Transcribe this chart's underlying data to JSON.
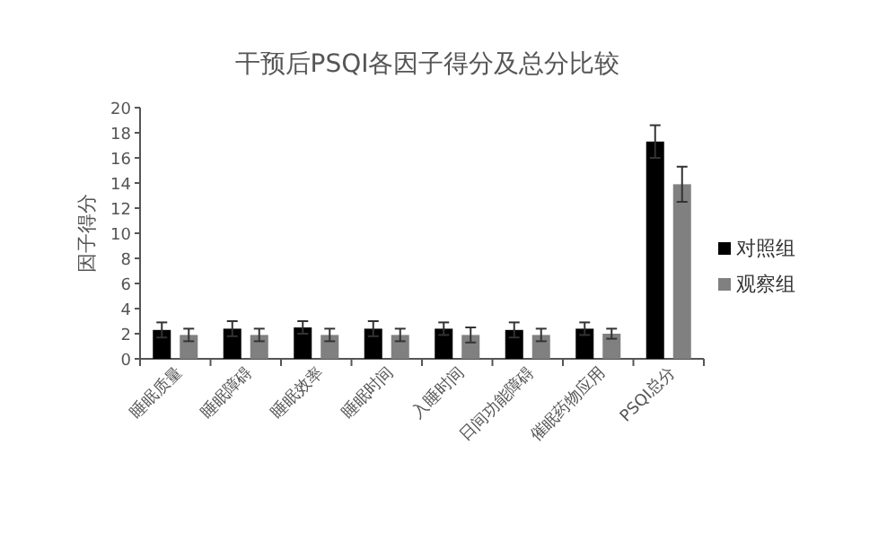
{
  "chart_data": {
    "type": "bar",
    "title": "干预后PSQI各因子得分及总分比较",
    "ylabel": "因子得分",
    "categories": [
      "睡眠质量",
      "睡眠障碍",
      "睡眠效率",
      "睡眠时间",
      "入睡时间",
      "日间功能障碍",
      "催眠药物应用",
      "PSQI总分"
    ],
    "series": [
      {
        "name": "对照组",
        "color": "#000000",
        "values": [
          2.3,
          2.4,
          2.5,
          2.4,
          2.4,
          2.3,
          2.4,
          17.3
        ],
        "errors": [
          0.6,
          0.6,
          0.5,
          0.6,
          0.5,
          0.6,
          0.5,
          1.3
        ]
      },
      {
        "name": "观察组",
        "color": "#808080",
        "values": [
          1.9,
          1.9,
          1.9,
          1.9,
          1.9,
          1.9,
          2.0,
          13.9
        ],
        "errors": [
          0.5,
          0.5,
          0.5,
          0.5,
          0.6,
          0.5,
          0.4,
          1.4
        ]
      }
    ],
    "ylim": [
      0,
      20
    ],
    "yticks": [
      0,
      2,
      4,
      6,
      8,
      10,
      12,
      14,
      16,
      18,
      20
    ],
    "grid": false,
    "legend": "right"
  }
}
